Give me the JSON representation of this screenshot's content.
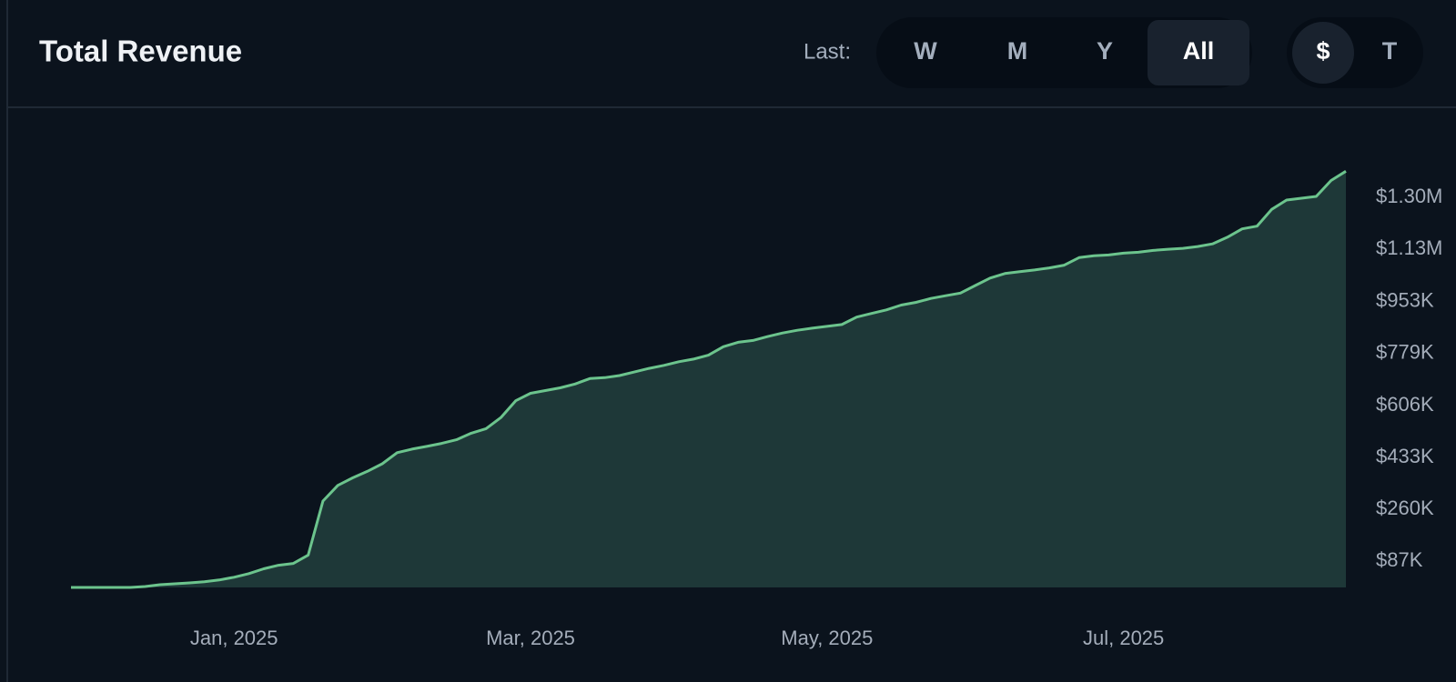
{
  "header": {
    "title": "Total Revenue",
    "last_label": "Last:",
    "range_buttons": [
      "W",
      "M",
      "Y",
      "All"
    ],
    "currency_buttons": [
      "$",
      "T"
    ]
  },
  "chart_data": {
    "type": "area",
    "categories": [
      null,
      null,
      null,
      null,
      null,
      null,
      null,
      null,
      null,
      null,
      null,
      "Jan, 2025",
      null,
      null,
      null,
      null,
      null,
      null,
      null,
      null,
      null,
      null,
      null,
      null,
      null,
      null,
      null,
      null,
      null,
      null,
      null,
      "Mar, 2025",
      null,
      null,
      null,
      null,
      null,
      null,
      null,
      null,
      null,
      null,
      null,
      null,
      null,
      null,
      null,
      null,
      null,
      null,
      null,
      "May, 2025",
      null,
      null,
      null,
      null,
      null,
      null,
      null,
      null,
      null,
      null,
      null,
      null,
      null,
      null,
      null,
      null,
      null,
      null,
      null,
      "Jul, 2025",
      null,
      null,
      null,
      null,
      null,
      null,
      null,
      null,
      null,
      null,
      null,
      null,
      null,
      null,
      null
    ],
    "series": [
      {
        "color": "#6cc48d",
        "fill": "#1e3838",
        "values": [
          0,
          0,
          0,
          0,
          0,
          3000,
          9000,
          12000,
          15000,
          19000,
          25000,
          34000,
          46000,
          62000,
          74000,
          80000,
          108000,
          288000,
          340000,
          365000,
          387000,
          412000,
          449000,
          461000,
          470000,
          480000,
          492000,
          514000,
          529000,
          566000,
          622000,
          647000,
          656000,
          665000,
          678000,
          696000,
          699000,
          706000,
          718000,
          730000,
          740000,
          752000,
          761000,
          774000,
          802000,
          817000,
          823000,
          836000,
          848000,
          857000,
          864000,
          870000,
          876000,
          901000,
          913000,
          925000,
          941000,
          950000,
          963000,
          972000,
          981000,
          1006000,
          1031000,
          1046000,
          1052000,
          1058000,
          1065000,
          1074000,
          1099000,
          1105000,
          1108000,
          1114000,
          1117000,
          1123000,
          1127000,
          1130000,
          1136000,
          1145000,
          1167000,
          1195000,
          1204000,
          1260000,
          1291000,
          1297000,
          1303000,
          1356000,
          1387000
        ]
      }
    ],
    "ylim": [
      0,
      1500000
    ],
    "yticks": [
      {
        "value": 87000,
        "label": "$87K"
      },
      {
        "value": 260000,
        "label": "$260K"
      },
      {
        "value": 433000,
        "label": "$433K"
      },
      {
        "value": 606000,
        "label": "$606K"
      },
      {
        "value": 779000,
        "label": "$779K"
      },
      {
        "value": 953000,
        "label": "$953K"
      },
      {
        "value": 1126000,
        "label": "$1.13M"
      },
      {
        "value": 1299000,
        "label": "$1.30M"
      }
    ],
    "grid": false
  }
}
